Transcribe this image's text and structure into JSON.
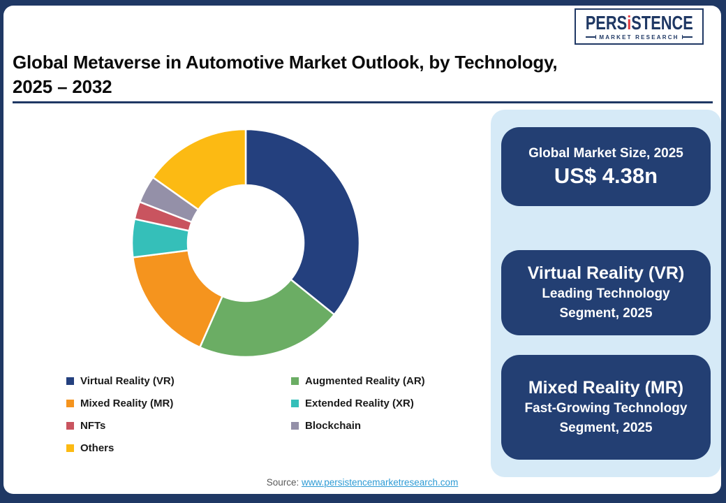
{
  "header": {
    "title_line1": "Global Metaverse in Automotive Market Outlook, by Technology,",
    "title_line2": "2025 – 2032"
  },
  "logo": {
    "brand_pre": "PERS",
    "brand_accent": "i",
    "brand_post": "STENCE",
    "tagline": "MARKET RESEARCH"
  },
  "side_panel": {
    "cards": [
      {
        "title": "Global Market Size, 2025",
        "value": "US$ 4.38n"
      },
      {
        "title": "Virtual Reality (VR)",
        "subtitle_line1": "Leading Technology",
        "subtitle_line2": "Segment, 2025"
      },
      {
        "title": "Mixed Reality (MR)",
        "subtitle_line1": "Fast-Growing Technology",
        "subtitle_line2": "Segment, 2025"
      }
    ]
  },
  "source": {
    "label": "Source:",
    "link": "www.persistencemarketresearch.com"
  },
  "colors": {
    "frame_navy": "#1F3864",
    "card_navy": "#233F73",
    "panel_light_blue": "#D6EAF7",
    "link_blue": "#2E9BD5",
    "accent_red": "#E63A3F"
  },
  "chart_data": {
    "type": "pie",
    "subtype": "donut",
    "title": "Global Metaverse in Automotive Market Outlook, by Technology, 2025 – 2032",
    "unit": "% share (estimated from arc angles; no numeric labels shown)",
    "start_angle_deg": 0,
    "direction": "clockwise",
    "inner_radius_ratio": 0.51,
    "legend_position": "bottom-left, two columns",
    "segments": [
      {
        "label": "Virtual Reality (VR)",
        "value": 35.8,
        "color": "#24407E"
      },
      {
        "label": "Augmented Reality (AR)",
        "value": 20.8,
        "color": "#6BAD64"
      },
      {
        "label": "Mixed Reality (MR)",
        "value": 16.4,
        "color": "#F5941E"
      },
      {
        "label": "Extended Reality (XR)",
        "value": 5.4,
        "color": "#35BFB9"
      },
      {
        "label": "NFTs",
        "value": 2.5,
        "color": "#C9545F"
      },
      {
        "label": "Blockchain",
        "value": 3.9,
        "color": "#9490A8"
      },
      {
        "label": "Others",
        "value": 15.2,
        "color": "#FCBA13"
      }
    ],
    "legend_column_order": [
      [
        0,
        2,
        4,
        6
      ],
      [
        1,
        3,
        5
      ]
    ]
  }
}
